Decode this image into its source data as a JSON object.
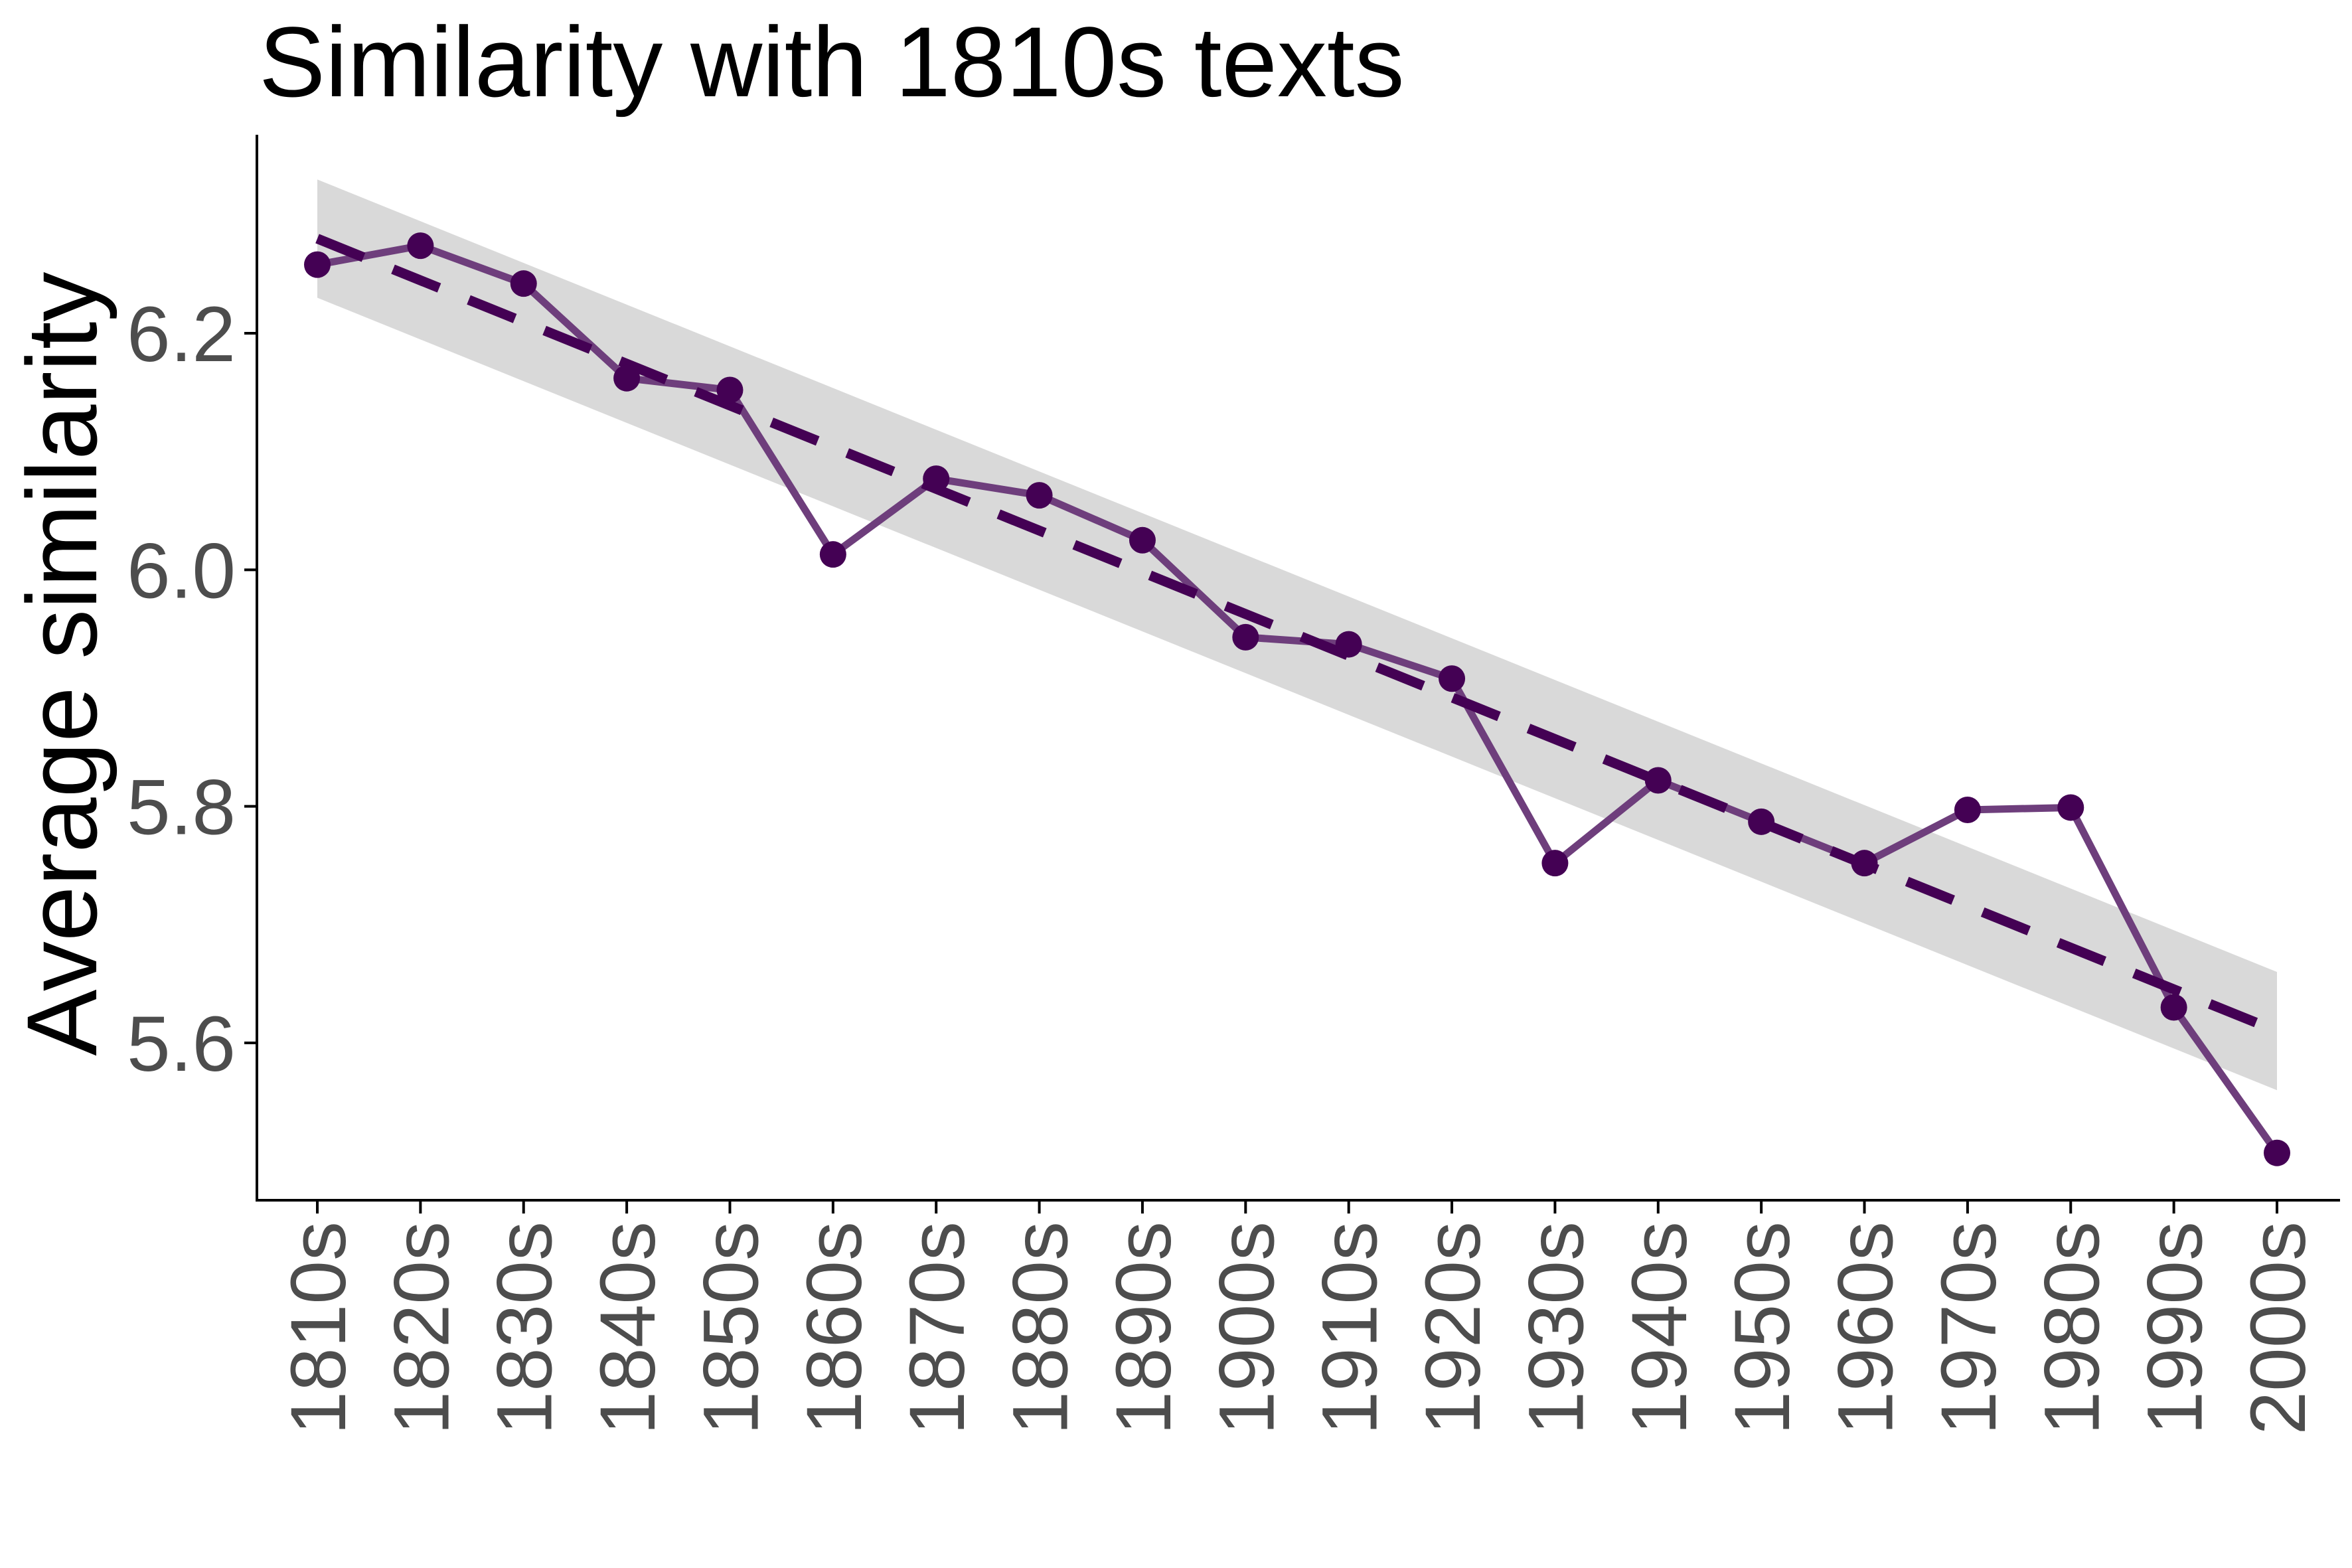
{
  "chart_data": {
    "type": "line",
    "title": "Similarity with 1810s texts",
    "xlabel": "",
    "ylabel": "Average similarity",
    "categories": [
      "1810s",
      "1820s",
      "1830s",
      "1840s",
      "1850s",
      "1860s",
      "1870s",
      "1880s",
      "1890s",
      "1900s",
      "1910s",
      "1920s",
      "1930s",
      "1940s",
      "1950s",
      "1960s",
      "1970s",
      "1980s",
      "1990s",
      "2000s"
    ],
    "series": [
      {
        "values": [
          6.258,
          6.274,
          6.242,
          6.162,
          6.152,
          6.013,
          6.077,
          6.063,
          6.025,
          5.943,
          5.937,
          5.908,
          5.752,
          5.822,
          5.787,
          5.752,
          5.797,
          5.799,
          5.63,
          5.507
        ],
        "color": "#6e3e7c",
        "point_color": "#440154"
      }
    ],
    "trend": {
      "style": "dashed",
      "color": "#440154",
      "start": 6.28,
      "end": 5.61
    },
    "confidence_band": {
      "color": "#d9d9d9",
      "start_lower": 6.23,
      "start_upper": 6.33,
      "end_lower": 5.56,
      "end_upper": 5.66
    },
    "yticks": [
      5.6,
      5.8,
      6.0,
      6.2
    ],
    "ylim": [
      5.46,
      6.37
    ],
    "grid": false,
    "legend": "none"
  }
}
